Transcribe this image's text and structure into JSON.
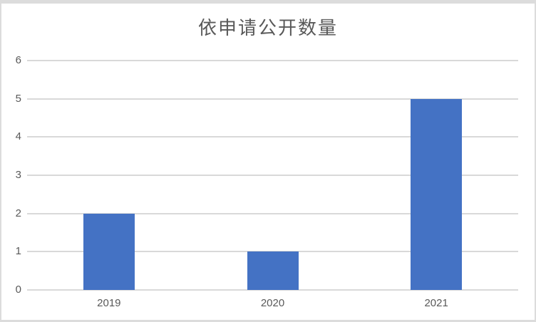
{
  "title": "依申请公开数量",
  "colors": {
    "bar": "#4472C4",
    "gridline": "#D9D9D9",
    "border": "#DCDCDC",
    "text": "#595959",
    "background": "#FFFFFF"
  },
  "chart_data": {
    "type": "bar",
    "title": "依申请公开数量",
    "categories": [
      "2019",
      "2020",
      "2021"
    ],
    "values": [
      2,
      1,
      5
    ],
    "series": [
      {
        "name": "依申请公开数量",
        "values": [
          2,
          1,
          5
        ]
      }
    ],
    "xlabel": "",
    "ylabel": "",
    "ylim": [
      0,
      6
    ],
    "yticks": [
      0,
      1,
      2,
      3,
      4,
      5,
      6
    ],
    "ytick_interval": 1,
    "grid": true,
    "grid_axis": "y",
    "legend": false,
    "bar_color": "#4472C4"
  }
}
